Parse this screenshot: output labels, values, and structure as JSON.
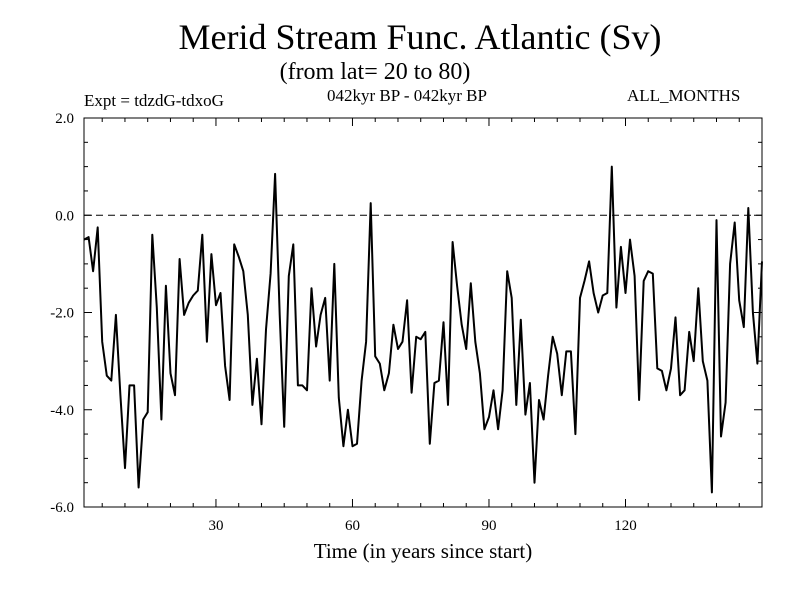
{
  "header": {
    "title": "Merid Stream Func. Atlantic (Sv)",
    "subtitle": "(from lat= 20 to 80)",
    "expt": "Expt = tdzdG-tdxoG",
    "period": "042kyr BP - 042kyr BP",
    "months": "ALL_MONTHS"
  },
  "chart_data": {
    "type": "line",
    "title": "Merid Stream Func. Atlantic (Sv)",
    "subtitle": "(from lat= 20 to 80)",
    "xlabel": "Time (in years since start)",
    "ylabel": "",
    "xlim": [
      1,
      150
    ],
    "ylim": [
      -6.0,
      2.0
    ],
    "x_ticks": [
      30,
      60,
      90,
      120
    ],
    "x_tick_labels": [
      "30",
      "60",
      "90",
      "120"
    ],
    "y_ticks": [
      -6.0,
      -4.0,
      -2.0,
      0.0,
      2.0
    ],
    "y_tick_labels": [
      "-6.0",
      "-4.0",
      "-2.0",
      "0.0",
      "2.0"
    ],
    "reference_line": {
      "y": 0.0,
      "style": "dashed"
    },
    "grid": false,
    "series": [
      {
        "name": "Merid Stream Func. Atlantic",
        "x": [
          1,
          2,
          3,
          4,
          5,
          6,
          7,
          8,
          9,
          10,
          11,
          12,
          13,
          14,
          15,
          16,
          17,
          18,
          19,
          20,
          21,
          22,
          23,
          24,
          25,
          26,
          27,
          28,
          29,
          30,
          31,
          32,
          33,
          34,
          35,
          36,
          37,
          38,
          39,
          40,
          41,
          42,
          43,
          44,
          45,
          46,
          47,
          48,
          49,
          50,
          51,
          52,
          53,
          54,
          55,
          56,
          57,
          58,
          59,
          60,
          61,
          62,
          63,
          64,
          65,
          66,
          67,
          68,
          69,
          70,
          71,
          72,
          73,
          74,
          75,
          76,
          77,
          78,
          79,
          80,
          81,
          82,
          83,
          84,
          85,
          86,
          87,
          88,
          89,
          90,
          91,
          92,
          93,
          94,
          95,
          96,
          97,
          98,
          99,
          100,
          101,
          102,
          103,
          104,
          105,
          106,
          107,
          108,
          109,
          110,
          111,
          112,
          113,
          114,
          115,
          116,
          117,
          118,
          119,
          120,
          121,
          122,
          123,
          124,
          125,
          126,
          127,
          128,
          129,
          130,
          131,
          132,
          133,
          134,
          135,
          136,
          137,
          138,
          139,
          140,
          141,
          142,
          143,
          144,
          145,
          146,
          147,
          148,
          149,
          150
        ],
        "values": [
          -0.5,
          -0.45,
          -1.15,
          -0.25,
          -2.6,
          -3.3,
          -3.4,
          -2.05,
          -3.7,
          -5.2,
          -3.5,
          -3.5,
          -5.6,
          -4.2,
          -4.05,
          -0.4,
          -1.9,
          -4.2,
          -1.45,
          -3.25,
          -3.7,
          -0.9,
          -2.05,
          -1.8,
          -1.65,
          -1.55,
          -0.4,
          -2.6,
          -0.8,
          -1.85,
          -1.6,
          -3.1,
          -3.8,
          -0.6,
          -0.85,
          -1.15,
          -2.05,
          -3.9,
          -2.95,
          -4.3,
          -2.35,
          -1.2,
          0.85,
          -2.05,
          -4.35,
          -1.25,
          -0.6,
          -3.5,
          -3.5,
          -3.6,
          -1.5,
          -2.7,
          -2.05,
          -1.7,
          -3.4,
          -1.0,
          -3.75,
          -4.75,
          -4.0,
          -4.75,
          -4.7,
          -3.4,
          -2.6,
          0.25,
          -2.9,
          -3.05,
          -3.6,
          -3.25,
          -2.25,
          -2.75,
          -2.6,
          -1.75,
          -3.65,
          -2.5,
          -2.55,
          -2.4,
          -4.7,
          -3.45,
          -3.4,
          -2.2,
          -3.9,
          -0.55,
          -1.45,
          -2.25,
          -2.75,
          -1.4,
          -2.6,
          -3.25,
          -4.4,
          -4.15,
          -3.6,
          -4.4,
          -3.6,
          -1.15,
          -1.7,
          -3.9,
          -2.15,
          -4.1,
          -3.45,
          -5.5,
          -3.8,
          -4.2,
          -3.3,
          -2.5,
          -2.85,
          -3.7,
          -2.8,
          -2.8,
          -4.5,
          -1.7,
          -1.35,
          -0.95,
          -1.6,
          -2.0,
          -1.65,
          -1.6,
          1.0,
          -1.9,
          -0.65,
          -1.6,
          -0.5,
          -1.25,
          -3.8,
          -1.35,
          -1.15,
          -1.2,
          -3.15,
          -3.2,
          -3.6,
          -3.15,
          -2.1,
          -3.7,
          -3.6,
          -2.4,
          -3.0,
          -1.5,
          -3.0,
          -3.4,
          -5.7,
          -0.1,
          -4.55,
          -3.85,
          -1.0,
          -0.15,
          -1.75,
          -2.3,
          0.15,
          -2.0,
          -3.05,
          -0.95
        ]
      }
    ]
  }
}
